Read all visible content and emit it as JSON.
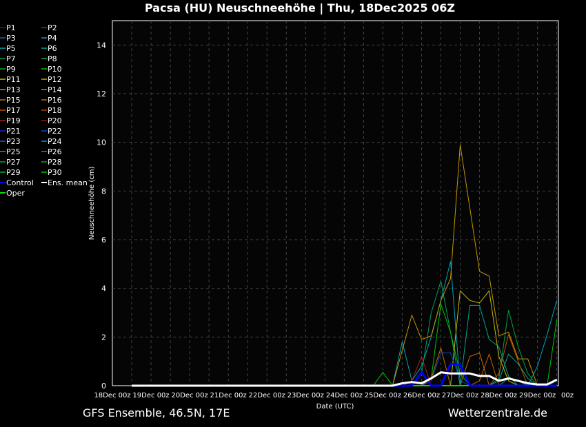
{
  "title": "Pacsa  (HU)  Neuschneehöhe | Thu, 18Dec2025 06Z",
  "footer": {
    "left": "GFS Ensemble, 46.5N, 17E",
    "right": "Wetterzentrale.de"
  },
  "chart_data": {
    "type": "line",
    "title": "Pacsa  (HU)  Neuschneehöhe | Thu, 18Dec2025 06Z",
    "xlabel": "Date (UTC)",
    "ylabel": "Neuschneehöhe (cm)",
    "xlim": [
      "18Dec 00z",
      "29Dec 12z"
    ],
    "ylim": [
      0,
      15
    ],
    "grid": true,
    "legend_placement": "left-outside",
    "x_ticks": [
      "18Dec 00z",
      "19Dec 00z",
      "20Dec 00z",
      "21Dec 00z",
      "22Dec 00z",
      "23Dec 00z",
      "24Dec 00z",
      "25Dec 00z",
      "26Dec 00z",
      "27Dec 00z",
      "28Dec 00z",
      "29Dec 00z"
    ],
    "x_tick_last_partial": "00z",
    "y_ticks": [
      0,
      2,
      4,
      6,
      8,
      10,
      12,
      14
    ],
    "x": [
      "18Dec 12z",
      "24Dec 18z",
      "25Dec 00z",
      "25Dec 06z",
      "25Dec 12z",
      "25Dec 18z",
      "26Dec 00z",
      "26Dec 06z",
      "26Dec 12z",
      "26Dec 18z",
      "27Dec 00z",
      "27Dec 06z",
      "27Dec 12z",
      "27Dec 18z",
      "28Dec 00z",
      "28Dec 06z",
      "28Dec 12z",
      "28Dec 18z",
      "29Dec 00z",
      "29Dec 06z",
      "29Dec 12z"
    ],
    "series": [
      {
        "name": "P1",
        "color": "#1c1cd4",
        "values": [
          0,
          0,
          0,
          0,
          0,
          0,
          0,
          0,
          0,
          0,
          0,
          0,
          0,
          0,
          0,
          0,
          0,
          0,
          0,
          0,
          0
        ]
      },
      {
        "name": "P2",
        "color": "#0a48c4",
        "values": [
          0,
          0,
          0,
          0,
          0,
          0,
          0,
          0,
          0,
          0,
          0,
          0,
          0,
          0,
          0,
          0,
          0,
          0,
          0,
          0,
          0
        ]
      },
      {
        "name": "P3",
        "color": "#0a64c0",
        "values": [
          0,
          0,
          0,
          0,
          0,
          0,
          0,
          0,
          0,
          0,
          0,
          0,
          0,
          0,
          0,
          0,
          0,
          0,
          0,
          0,
          0
        ]
      },
      {
        "name": "P4",
        "color": "#0a94c4",
        "values": [
          0,
          0,
          0,
          0,
          0,
          0,
          0,
          0,
          0,
          0,
          0,
          0,
          0,
          0,
          0,
          0,
          0,
          0,
          0,
          0,
          0
        ]
      },
      {
        "name": "P5",
        "color": "#00a4b4",
        "values": [
          0,
          0,
          0,
          0,
          1.8,
          0.2,
          0.8,
          2.0,
          3.5,
          5.1,
          0,
          0,
          0,
          0,
          0,
          0.3,
          0.2,
          0,
          0.8,
          2.1,
          3.5
        ]
      },
      {
        "name": "P6",
        "color": "#00a48c",
        "values": [
          0,
          0,
          0,
          0,
          0,
          0,
          0,
          0,
          0,
          0,
          0,
          0,
          0,
          0,
          0.2,
          1.3,
          0.9,
          0.3,
          0,
          0,
          0.2
        ]
      },
      {
        "name": "P7",
        "color": "#00a060",
        "values": [
          0,
          0,
          0,
          0,
          0,
          0,
          0.5,
          3.0,
          4.3,
          2.2,
          0,
          0,
          0,
          0,
          0,
          0,
          0,
          0,
          0,
          0,
          0
        ]
      },
      {
        "name": "P8",
        "color": "#00a444",
        "values": [
          0,
          0,
          0,
          0,
          0,
          0,
          0,
          0,
          0,
          0,
          0,
          0,
          0,
          0,
          0.3,
          3.1,
          1.6,
          0.5,
          0,
          0,
          0
        ]
      },
      {
        "name": "P9",
        "color": "#00b020",
        "values": [
          0,
          0,
          0,
          0,
          0,
          0,
          0,
          0,
          0,
          0,
          0,
          0,
          0,
          0,
          0,
          0,
          0,
          0,
          0,
          0,
          0
        ]
      },
      {
        "name": "P10",
        "color": "#00c400",
        "values": [
          0,
          0,
          0,
          0,
          0,
          0,
          0,
          0.3,
          3.35,
          2.2,
          0.5,
          0,
          0,
          0,
          0,
          0,
          0,
          0,
          0,
          0,
          0
        ]
      },
      {
        "name": "P11",
        "color": "#c4c000",
        "values": [
          0,
          0,
          0,
          0,
          0,
          0,
          0,
          0,
          0,
          0,
          3.9,
          3.5,
          3.4,
          3.9,
          1.2,
          0.2,
          0,
          0,
          0,
          0,
          0
        ]
      },
      {
        "name": "P12",
        "color": "#c4b000",
        "values": [
          0,
          0,
          0,
          0,
          0,
          0,
          0,
          0,
          0,
          0,
          0,
          0,
          0,
          0,
          0,
          0,
          0,
          0,
          0,
          0,
          0
        ]
      },
      {
        "name": "P13",
        "color": "#c49800",
        "values": [
          0,
          0,
          0,
          0,
          1.45,
          2.9,
          1.9,
          2.05,
          3.5,
          4.4,
          9.9,
          7.3,
          4.7,
          4.5,
          2.05,
          2.2,
          1.1,
          1.1,
          0,
          0,
          0
        ]
      },
      {
        "name": "P14",
        "color": "#c48400",
        "values": [
          0,
          0,
          0,
          0,
          0,
          0,
          0,
          0,
          0,
          0,
          0,
          0,
          0,
          0,
          0,
          0,
          0,
          0,
          0,
          0,
          0
        ]
      },
      {
        "name": "P15",
        "color": "#c47000",
        "values": [
          0,
          0,
          0,
          0,
          0,
          0,
          0,
          0.3,
          1.55,
          0,
          0,
          1.2,
          1.35,
          0,
          0,
          0,
          0,
          0,
          0,
          0,
          0
        ]
      },
      {
        "name": "P16",
        "color": "#c46000",
        "values": [
          0,
          0,
          0,
          0,
          0,
          0,
          0,
          0,
          0,
          0,
          0,
          0,
          0.2,
          1.3,
          0,
          0,
          0,
          0,
          0,
          0,
          0
        ]
      },
      {
        "name": "P17",
        "color": "#c45000",
        "values": [
          0,
          0,
          0,
          0,
          0,
          0,
          0,
          0,
          0,
          0,
          0,
          0,
          0,
          0,
          0.5,
          2.1,
          1.0,
          0,
          0,
          0,
          0
        ]
      },
      {
        "name": "P18",
        "color": "#b44020",
        "values": [
          0,
          0,
          0,
          0,
          0,
          0,
          0,
          0,
          0,
          0,
          0,
          0,
          0,
          0,
          0,
          0,
          0,
          0,
          0,
          0,
          0
        ]
      },
      {
        "name": "P19",
        "color": "#a42020",
        "values": [
          0,
          0,
          0,
          0,
          0,
          0.2,
          1.2,
          0,
          0,
          0,
          0,
          0,
          0,
          0,
          0,
          0,
          0,
          0,
          0,
          0,
          0
        ]
      },
      {
        "name": "P20",
        "color": "#901010",
        "values": [
          0,
          0,
          0,
          0,
          0,
          0,
          0,
          0,
          0,
          0,
          0,
          0,
          0,
          0,
          0,
          0,
          0,
          0,
          0,
          0,
          0
        ]
      },
      {
        "name": "P21",
        "color": "#1c1cd4",
        "values": [
          0,
          0,
          0,
          0,
          0,
          0,
          0,
          0,
          0,
          0,
          0,
          0,
          0,
          0,
          0,
          0,
          0,
          0,
          0,
          0,
          0
        ]
      },
      {
        "name": "P22",
        "color": "#0a48c4",
        "values": [
          0,
          0,
          0,
          0,
          0,
          0,
          0,
          0.2,
          1.35,
          1.35,
          0.2,
          0,
          0,
          0,
          0,
          0,
          0,
          0,
          0,
          0,
          0
        ]
      },
      {
        "name": "P23",
        "color": "#0a64c0",
        "values": [
          0,
          0,
          0,
          0,
          0,
          0,
          0,
          0,
          0,
          0,
          0,
          0,
          0,
          0,
          0,
          0,
          0,
          0,
          0,
          0,
          0
        ]
      },
      {
        "name": "P24",
        "color": "#0a94c4",
        "values": [
          0,
          0,
          0,
          0,
          0,
          0,
          0,
          0,
          0,
          0,
          0,
          0,
          0,
          0,
          0,
          0,
          0,
          0,
          0,
          0,
          0
        ]
      },
      {
        "name": "P25",
        "color": "#00a4b4",
        "values": [
          0,
          0,
          0,
          0,
          0,
          0,
          0,
          0,
          0,
          0,
          0,
          0,
          0,
          0,
          0,
          0,
          0,
          0,
          0,
          0,
          0
        ]
      },
      {
        "name": "P26",
        "color": "#00a48c",
        "values": [
          0,
          0,
          0,
          0,
          0,
          0,
          0,
          0,
          0,
          0,
          0,
          3.3,
          3.3,
          1.9,
          1.6,
          0.4,
          0,
          0,
          0,
          0,
          0
        ]
      },
      {
        "name": "P27",
        "color": "#00a060",
        "values": [
          0,
          0,
          0,
          0,
          0,
          0,
          0,
          0,
          0,
          0,
          0,
          0,
          0,
          0,
          0,
          0,
          0,
          0,
          0,
          0,
          0
        ]
      },
      {
        "name": "P28",
        "color": "#00a444",
        "values": [
          0,
          0,
          0,
          0,
          0,
          0,
          0,
          0,
          0,
          0,
          0,
          0,
          0,
          0,
          0,
          0,
          0,
          0,
          0,
          0,
          0
        ]
      },
      {
        "name": "P29",
        "color": "#00b020",
        "values": [
          0,
          0,
          0,
          0,
          0,
          0,
          0,
          0,
          0,
          0,
          0,
          0,
          0,
          0,
          0,
          0,
          0,
          0,
          0,
          0,
          0
        ]
      },
      {
        "name": "P30",
        "color": "#00c400",
        "values": [
          0,
          0,
          0.55,
          0,
          0,
          0,
          0,
          0,
          0,
          0,
          0,
          0,
          0,
          0,
          0,
          0,
          0,
          0,
          0,
          0,
          2.7
        ]
      },
      {
        "name": "Control",
        "color": "#0000ff",
        "width": 3,
        "values": [
          0,
          0,
          0,
          0,
          0,
          0,
          0.55,
          0,
          0,
          0.9,
          0.85,
          0,
          0,
          0,
          0,
          0,
          0,
          0,
          0,
          0,
          0
        ]
      },
      {
        "name": "Ens. mean",
        "color": "#ffffff",
        "width": 3,
        "values": [
          0,
          0,
          0,
          0,
          0.1,
          0.15,
          0.1,
          0.3,
          0.55,
          0.5,
          0.5,
          0.5,
          0.4,
          0.4,
          0.2,
          0.3,
          0.2,
          0.1,
          0.05,
          0.05,
          0.25
        ]
      },
      {
        "name": "Oper",
        "color": "#00e000",
        "width": 2,
        "values": [
          0,
          0,
          0,
          0,
          0,
          0,
          0,
          0,
          0,
          0,
          0,
          0,
          0,
          0,
          0,
          0,
          0,
          0,
          0,
          0,
          0
        ]
      }
    ]
  }
}
